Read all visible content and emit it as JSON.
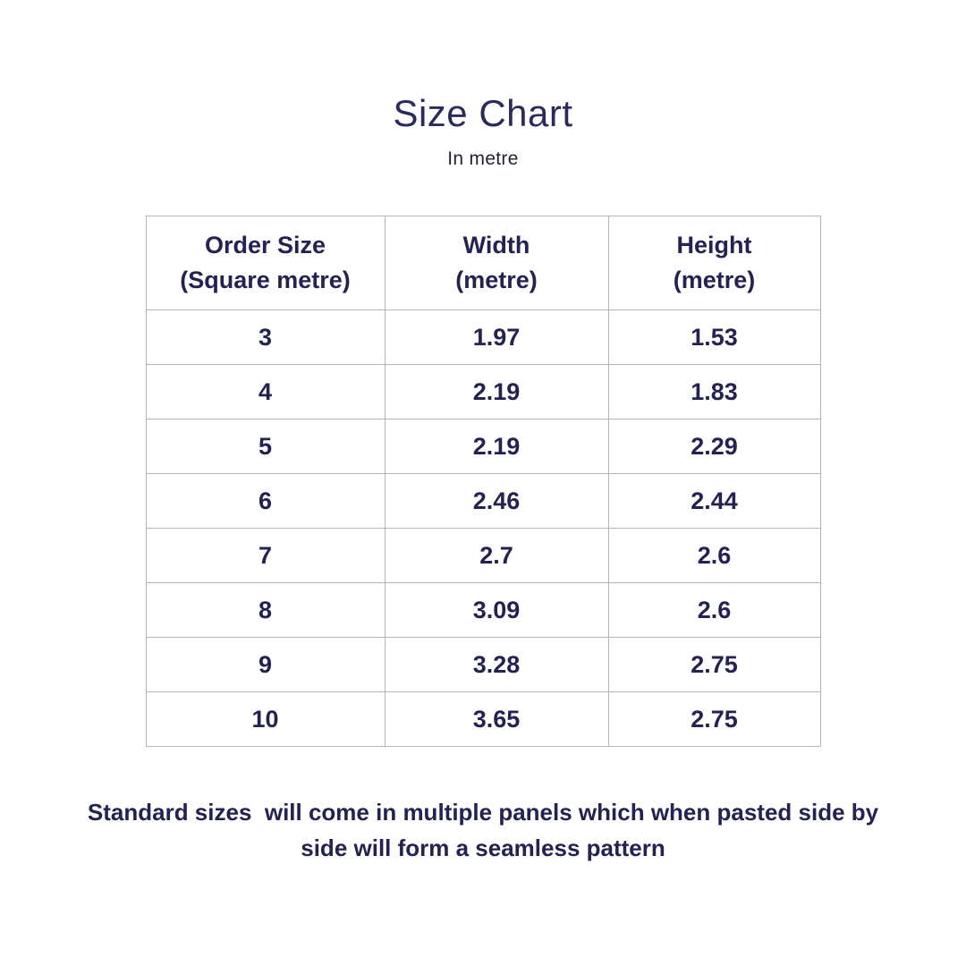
{
  "header": {
    "title": "Size Chart",
    "subtitle": "In metre"
  },
  "colors": {
    "title_text": "#2b2a5e",
    "table_text": "#232253",
    "table_border": "#b5b5b5",
    "background": "#ffffff"
  },
  "table_header": {
    "col1": {
      "line1": "Order Size",
      "line2": "(Square metre)"
    },
    "col2": {
      "line1": "Width",
      "line2": "(metre)"
    },
    "col3": {
      "line1": "Height",
      "line2": "(metre)"
    }
  },
  "chart_data": {
    "type": "table",
    "title": "Size Chart",
    "subtitle": "In metre",
    "columns": [
      "Order Size (Square metre)",
      "Width (metre)",
      "Height (metre)"
    ],
    "rows": [
      [
        "3",
        "1.97",
        "1.53"
      ],
      [
        "4",
        "2.19",
        "1.83"
      ],
      [
        "5",
        "2.19",
        "2.29"
      ],
      [
        "6",
        "2.46",
        "2.44"
      ],
      [
        "7",
        "2.7",
        "2.6"
      ],
      [
        "8",
        "3.09",
        "2.6"
      ],
      [
        "9",
        "3.28",
        "2.75"
      ],
      [
        "10",
        "3.65",
        "2.75"
      ]
    ],
    "note": "Standard sizes  will come in multiple panels which when pasted side by side will form a seamless pattern"
  }
}
